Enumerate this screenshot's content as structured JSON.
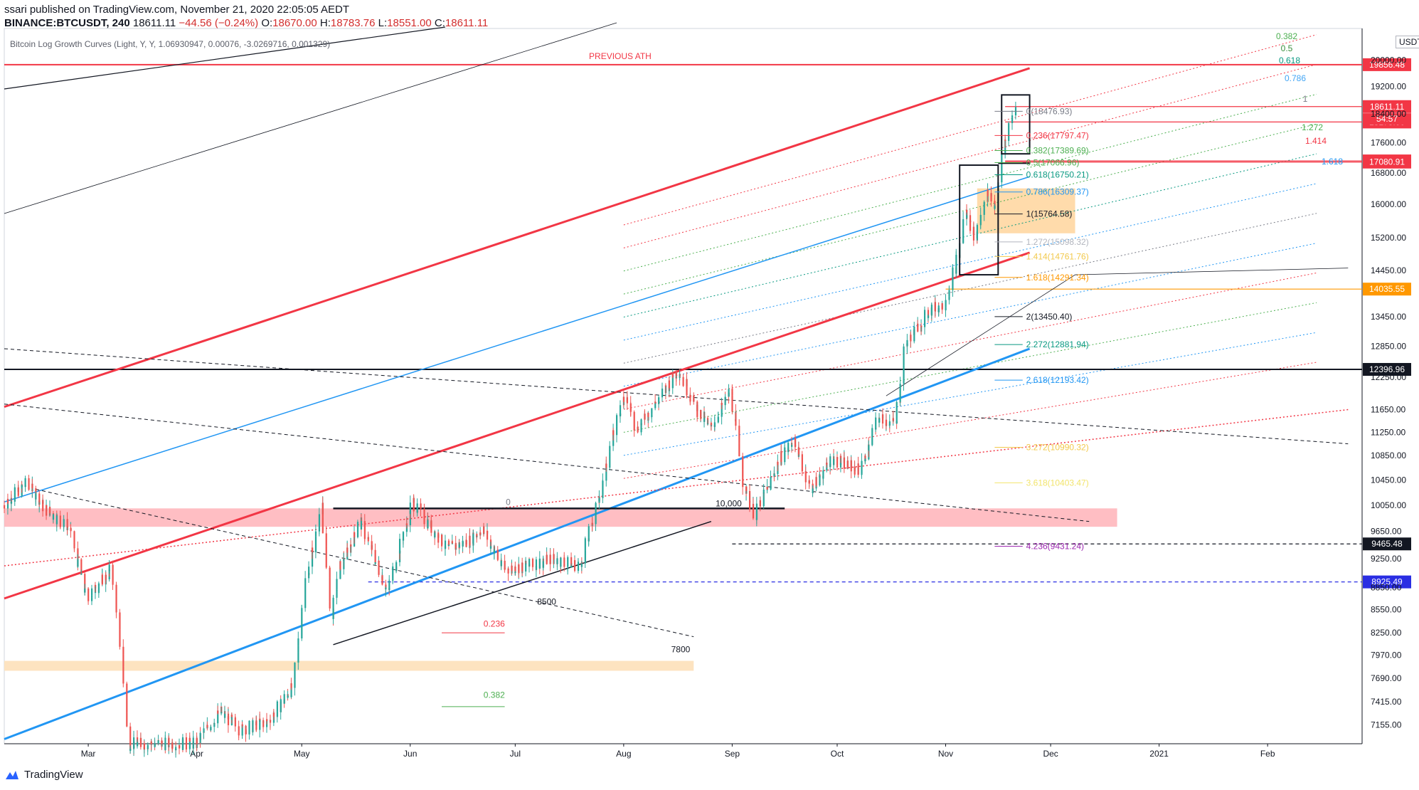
{
  "header": {
    "line1": "ssari published on TradingView.com, November 21, 2020 22:05:05 AEDT",
    "symbol": "BINANCE:BTCUSDT, 240",
    "last": "18611.11",
    "change": "−44.56 (−0.24%)",
    "o_label": "O:",
    "o": "18670.00",
    "h_label": "H:",
    "h": "18783.76",
    "l_label": "L:",
    "l": "18551.00",
    "c_label": "C:",
    "c": "18611.11"
  },
  "indicator": "Bitcoin Log Growth Curves (Light, Y, Y, 1.06930947, 0.00076, -3.0269716, 0.001329)",
  "currency": "USDT",
  "footer": {
    "brand": "TradingView"
  },
  "colors": {
    "up": "#26a69a",
    "down": "#ef5350",
    "red": "#f23645",
    "blue": "#2196f3"
  },
  "chart_data": {
    "type": "candlestick",
    "y_scale": "log",
    "ylim": [
      6950,
      21000
    ],
    "x_range": [
      "2020-02-06",
      "2021-02-28"
    ],
    "y_ticks": [
      7155,
      7415,
      7690,
      7970,
      8250,
      8550,
      8850,
      9250,
      9650,
      10050,
      10450,
      10850,
      11250,
      11650,
      12250,
      12850,
      13450,
      14450,
      15200,
      16000,
      16800,
      17600,
      18400,
      19200,
      20000
    ],
    "y_tick_labels": [
      "7155.00",
      "7415.00",
      "7690.00",
      "7970.00",
      "8250.00",
      "8550.00",
      "8850.00",
      "9250.00",
      "9650.00",
      "10050.00",
      "10450.00",
      "10850.00",
      "11250.00",
      "11650.00",
      "12250.00",
      "12850.00",
      "13450.00",
      "14450.00",
      "15200.00",
      "16000.00",
      "16800.00",
      "17600.00",
      "18400.00",
      "19200.00",
      "20000.00"
    ],
    "x_ticks": [
      {
        "date": "2020-03-01",
        "label": "Mar"
      },
      {
        "date": "2020-04-01",
        "label": "Apr"
      },
      {
        "date": "2020-05-01",
        "label": "May"
      },
      {
        "date": "2020-06-01",
        "label": "Jun"
      },
      {
        "date": "2020-07-01",
        "label": "Jul"
      },
      {
        "date": "2020-08-01",
        "label": "Aug"
      },
      {
        "date": "2020-09-01",
        "label": "Sep"
      },
      {
        "date": "2020-10-01",
        "label": "Oct"
      },
      {
        "date": "2020-11-01",
        "label": "Nov"
      },
      {
        "date": "2020-12-01",
        "label": "Dec"
      },
      {
        "date": "2021-01-01",
        "label": "2021"
      },
      {
        "date": "2021-02-01",
        "label": "Feb"
      }
    ],
    "price_path": [
      [
        "2020-02-06",
        10050
      ],
      [
        "2020-02-13",
        10400
      ],
      [
        "2020-02-18",
        10000
      ],
      [
        "2020-02-25",
        9700
      ],
      [
        "2020-03-01",
        8700
      ],
      [
        "2020-03-08",
        9100
      ],
      [
        "2020-03-11",
        8000
      ],
      [
        "2020-03-13",
        6950
      ],
      [
        "2020-04-01",
        6950
      ],
      [
        "2020-04-08",
        7300
      ],
      [
        "2020-04-14",
        7100
      ],
      [
        "2020-04-22",
        7200
      ],
      [
        "2020-04-29",
        7600
      ],
      [
        "2020-05-02",
        8800
      ],
      [
        "2020-05-07",
        10000
      ],
      [
        "2020-05-10",
        8400
      ],
      [
        "2020-05-12",
        9100
      ],
      [
        "2020-05-18",
        9800
      ],
      [
        "2020-05-26",
        8800
      ],
      [
        "2020-06-02",
        10100
      ],
      [
        "2020-06-12",
        9400
      ],
      [
        "2020-06-18",
        9500
      ],
      [
        "2020-06-22",
        9700
      ],
      [
        "2020-06-28",
        9100
      ],
      [
        "2020-07-05",
        9150
      ],
      [
        "2020-07-12",
        9250
      ],
      [
        "2020-07-20",
        9150
      ],
      [
        "2020-07-27",
        10500
      ],
      [
        "2020-07-29",
        11200
      ],
      [
        "2020-08-02",
        11900
      ],
      [
        "2020-08-05",
        11300
      ],
      [
        "2020-08-11",
        11800
      ],
      [
        "2020-08-17",
        12400
      ],
      [
        "2020-08-22",
        11700
      ],
      [
        "2020-08-26",
        11300
      ],
      [
        "2020-09-01",
        12000
      ],
      [
        "2020-09-05",
        10300
      ],
      [
        "2020-09-08",
        9900
      ],
      [
        "2020-09-15",
        10800
      ],
      [
        "2020-09-19",
        11100
      ],
      [
        "2020-09-24",
        10300
      ],
      [
        "2020-09-30",
        10800
      ],
      [
        "2020-10-08",
        10600
      ],
      [
        "2020-10-13",
        11500
      ],
      [
        "2020-10-18",
        11400
      ],
      [
        "2020-10-21",
        12900
      ],
      [
        "2020-10-28",
        13600
      ],
      [
        "2020-11-01",
        13700
      ],
      [
        "2020-11-05",
        14800
      ],
      [
        "2020-11-07",
        15800
      ],
      [
        "2020-11-10",
        15200
      ],
      [
        "2020-11-13",
        16300
      ],
      [
        "2020-11-16",
        15900
      ],
      [
        "2020-11-18",
        17600
      ],
      [
        "2020-11-21",
        18600
      ]
    ],
    "hlines": [
      {
        "price": 19856.48,
        "label": "19856.48",
        "color": "#f23645"
      },
      {
        "price": 18611.11,
        "label": "18611.11",
        "color": "#f23645"
      },
      {
        "price": 18173.0,
        "label": "18173.00",
        "color": "#f23645"
      },
      {
        "price": 17111.78,
        "label": "17111.78",
        "color": "#f23645"
      },
      {
        "price": 17080.91,
        "label": "17080.91",
        "color": "#f23645"
      },
      {
        "price": 14035.55,
        "label": "14035.55",
        "color": "#ff9800"
      },
      {
        "price": 12396.96,
        "label": "12396.96",
        "color": "#131722"
      },
      {
        "price": 9465.48,
        "label": "9465.48",
        "color": "#131722"
      },
      {
        "price": 8925.49,
        "label": "8925.49",
        "color": "#2a2ee3"
      }
    ],
    "countdown": "54:57",
    "fib_levels": [
      {
        "label": "0(18476.93)",
        "price": 18476.93,
        "color": "#787b86"
      },
      {
        "label": "0.236(17797.47)",
        "price": 17797.47,
        "color": "#f23645"
      },
      {
        "label": "0.382(17389.69)",
        "price": 17389.69,
        "color": "#4caf50"
      },
      {
        "label": "0.5(17066.96)",
        "price": 17066.96,
        "color": "#4caf50"
      },
      {
        "label": "0.618(16750.21)",
        "price": 16750.21,
        "color": "#089981"
      },
      {
        "label": "0.786(16309.37)",
        "price": 16309.37,
        "color": "#2196f3"
      },
      {
        "label": "1(15764.58)",
        "price": 15764.58,
        "color": "#131722"
      },
      {
        "label": "1.272(15098.32)",
        "price": 15098.32,
        "color": "#b2b5be"
      },
      {
        "label": "1.414(14761.76)",
        "price": 14761.76,
        "color": "#f2c94c"
      },
      {
        "label": "1.618(14291.34)",
        "price": 14291.34,
        "color": "#ff9800"
      },
      {
        "label": "2(13450.40)",
        "price": 13450.4,
        "color": "#131722"
      },
      {
        "label": "2.272(12881.94)",
        "price": 12881.94,
        "color": "#089981"
      },
      {
        "label": "2.618(12193.42)",
        "price": 12193.42,
        "color": "#2196f3"
      },
      {
        "label": "3.272(10990.32)",
        "price": 10990.32,
        "color": "#f2c94c"
      },
      {
        "label": "3.618(10403.47)",
        "price": 10403.47,
        "color": "#f2e46c"
      },
      {
        "label": "4.236(9431.24)",
        "price": 9431.24,
        "color": "#9c27b0"
      }
    ],
    "fan_labels": [
      {
        "label": "0.382",
        "color": "#4caf50"
      },
      {
        "label": "0.5",
        "color": "#388e3c"
      },
      {
        "label": "0.618",
        "color": "#089981"
      },
      {
        "label": "0.786",
        "color": "#42a5f5"
      },
      {
        "label": "1",
        "color": "#787b86"
      },
      {
        "label": "1.272",
        "color": "#4caf50"
      },
      {
        "label": "1.414",
        "color": "#f23645"
      },
      {
        "label": "1.618",
        "color": "#2196f3"
      }
    ],
    "annotations": [
      {
        "text": "PREVIOUS ATH",
        "color": "#f23645"
      },
      {
        "text": "0",
        "color": "#787b86"
      },
      {
        "text": "10,000",
        "color": "#131722"
      },
      {
        "text": "8500",
        "color": "#131722"
      },
      {
        "text": "0.236",
        "color": "#f23645"
      },
      {
        "text": "7800",
        "color": "#131722"
      },
      {
        "text": "0.382",
        "color": "#4caf50"
      }
    ]
  }
}
